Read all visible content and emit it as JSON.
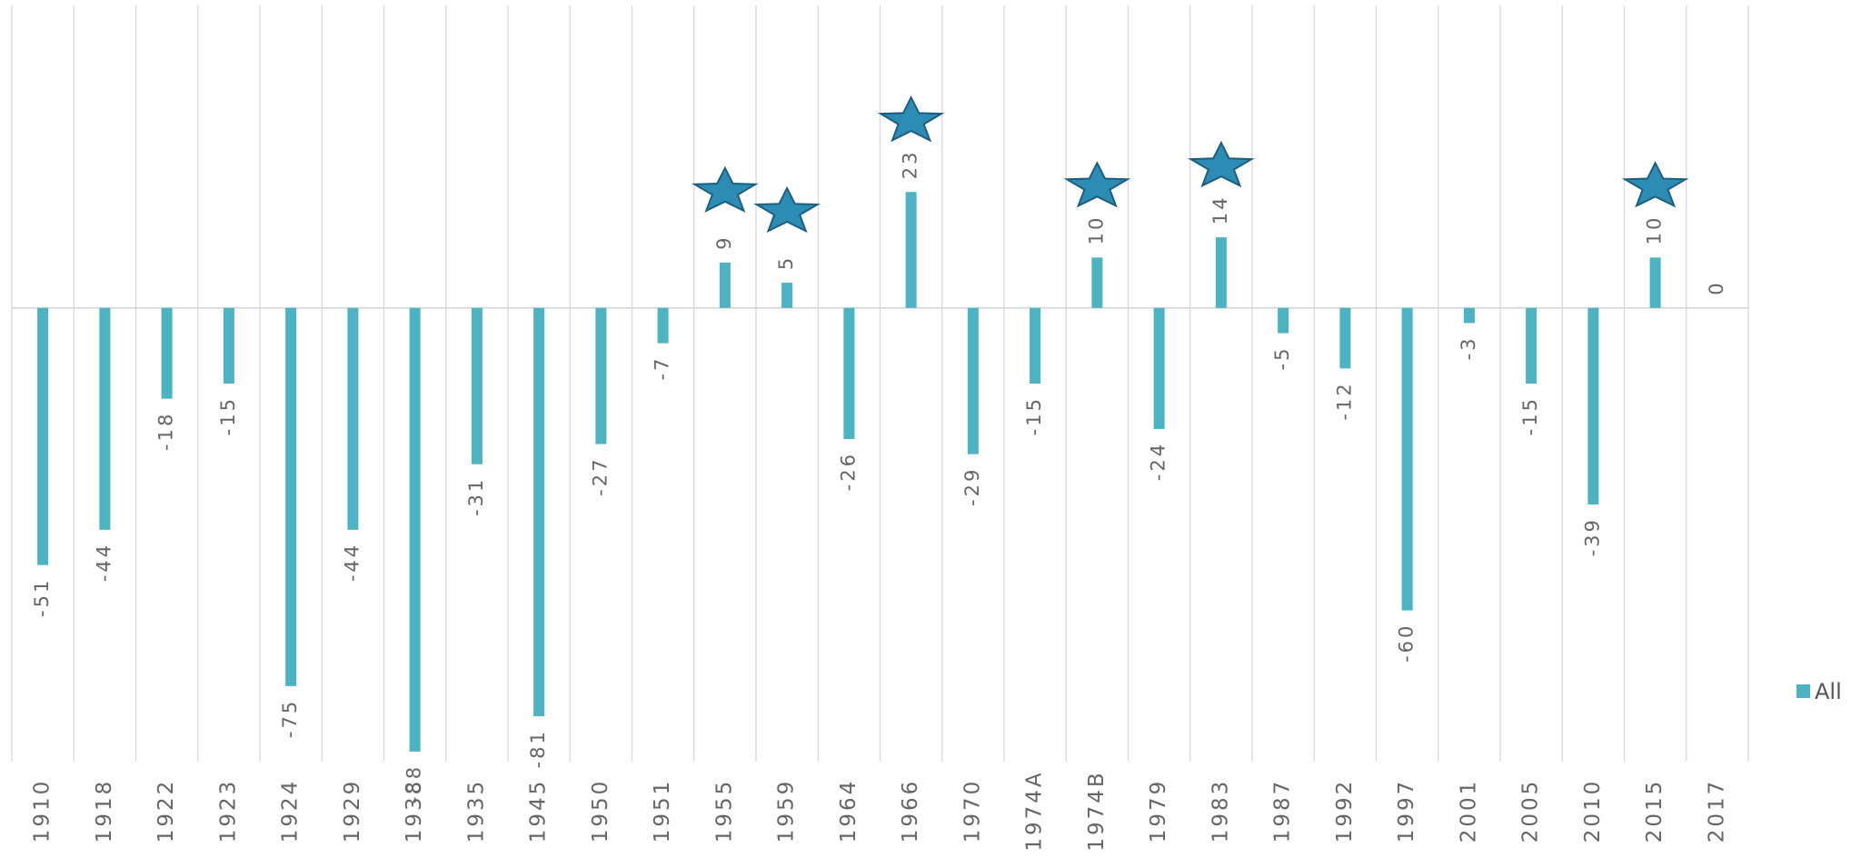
{
  "chart_data": {
    "type": "bar",
    "categories": [
      "1910",
      "1918",
      "1922",
      "1923",
      "1924",
      "1929",
      "1938",
      "1935",
      "1945",
      "1950",
      "1951",
      "1955",
      "1959",
      "1964",
      "1966",
      "1970",
      "1974A",
      "1974B",
      "1979",
      "1983",
      "1987",
      "1992",
      "1997",
      "2001",
      "2005",
      "2010",
      "2015",
      "2017"
    ],
    "series": [
      {
        "name": "All",
        "color": "#4bb3c1",
        "values": [
          -51,
          -44,
          -18,
          -15,
          -75,
          -44,
          -88,
          -31,
          -81,
          -27,
          -7,
          9,
          5,
          -26,
          23,
          -29,
          -15,
          10,
          -24,
          14,
          -5,
          -12,
          -60,
          -3,
          -15,
          -39,
          10,
          0
        ]
      }
    ],
    "highlight": [
      11,
      12,
      14,
      17,
      19,
      26
    ],
    "ylim": [
      -90,
      60
    ],
    "grid": true,
    "legend": "right"
  }
}
